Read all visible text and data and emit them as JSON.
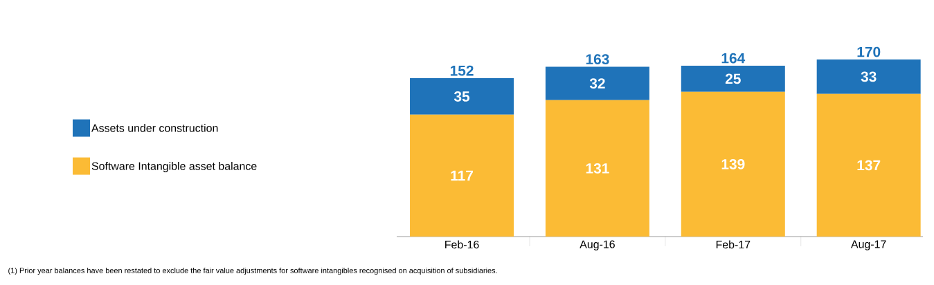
{
  "chart_data": {
    "type": "bar",
    "stacked": true,
    "categories": [
      "Feb-16",
      "Aug-16",
      "Feb-17",
      "Aug-17"
    ],
    "series": [
      {
        "name": "Software Intangible asset balance",
        "color": "#fbbb35",
        "values": [
          117,
          131,
          139,
          137
        ]
      },
      {
        "name": "Assets under construction",
        "color": "#1f73b9",
        "values": [
          35,
          32,
          25,
          33
        ]
      }
    ],
    "data_labels": true,
    "totals": [
      "152",
      "163",
      "164",
      "170"
    ],
    "legend": "left",
    "annotations": [
      "(1)  Prior year balances have been restated to exclude the fair value adjustments for software intangibles recognised on acquisition of subsidiaries."
    ]
  }
}
